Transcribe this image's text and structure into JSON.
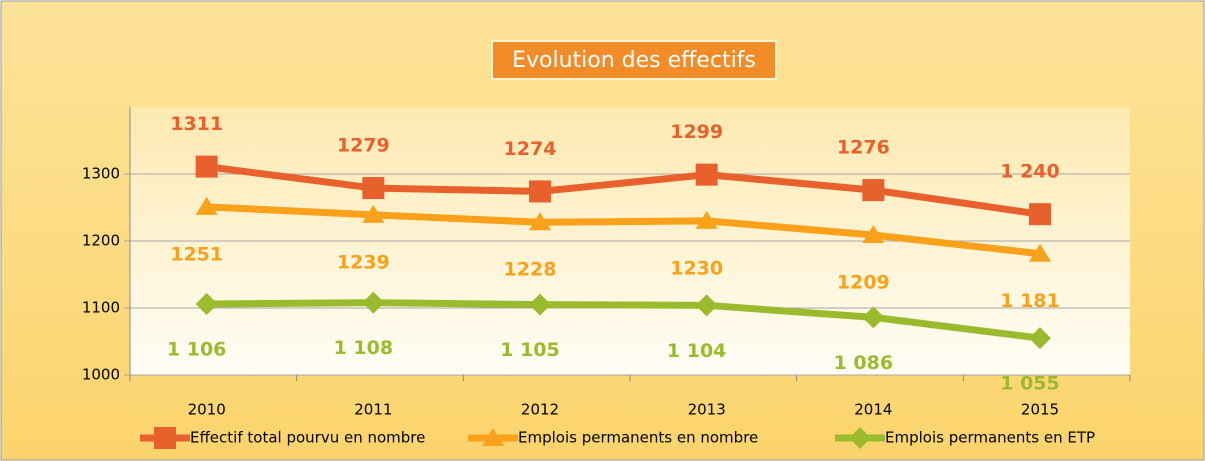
{
  "chart_data": {
    "type": "line",
    "title": "Evolution des effectifs",
    "categories": [
      "2010",
      "2011",
      "2012",
      "2013",
      "2014",
      "2015"
    ],
    "series": [
      {
        "name": "Effectif total pourvu en nombre",
        "color": "#e8602c",
        "marker": "square",
        "values": [
          1311,
          1279,
          1274,
          1299,
          1276,
          1240
        ],
        "value_labels": [
          "1311",
          "1279",
          "1274",
          "1299",
          "1276",
          "1 240"
        ]
      },
      {
        "name": "Emplois permanents en nombre",
        "color": "#f9a11b",
        "marker": "triangle",
        "values": [
          1251,
          1239,
          1228,
          1230,
          1209,
          1181
        ],
        "value_labels": [
          "1251",
          "1239",
          "1228",
          "1230",
          "1209",
          "1 181"
        ]
      },
      {
        "name": "Emplois permanents en ETP",
        "color": "#9bbb2f",
        "marker": "diamond",
        "values": [
          1106,
          1108,
          1105,
          1104,
          1086,
          1055
        ],
        "value_labels": [
          "1 106",
          "1 108",
          "1 105",
          "1 104",
          "1 086",
          "1 055"
        ]
      }
    ],
    "ylim": [
      1000,
      1400
    ],
    "yticks": [
      1000,
      1100,
      1200,
      1300
    ],
    "grid": true,
    "legend": "bottom"
  }
}
